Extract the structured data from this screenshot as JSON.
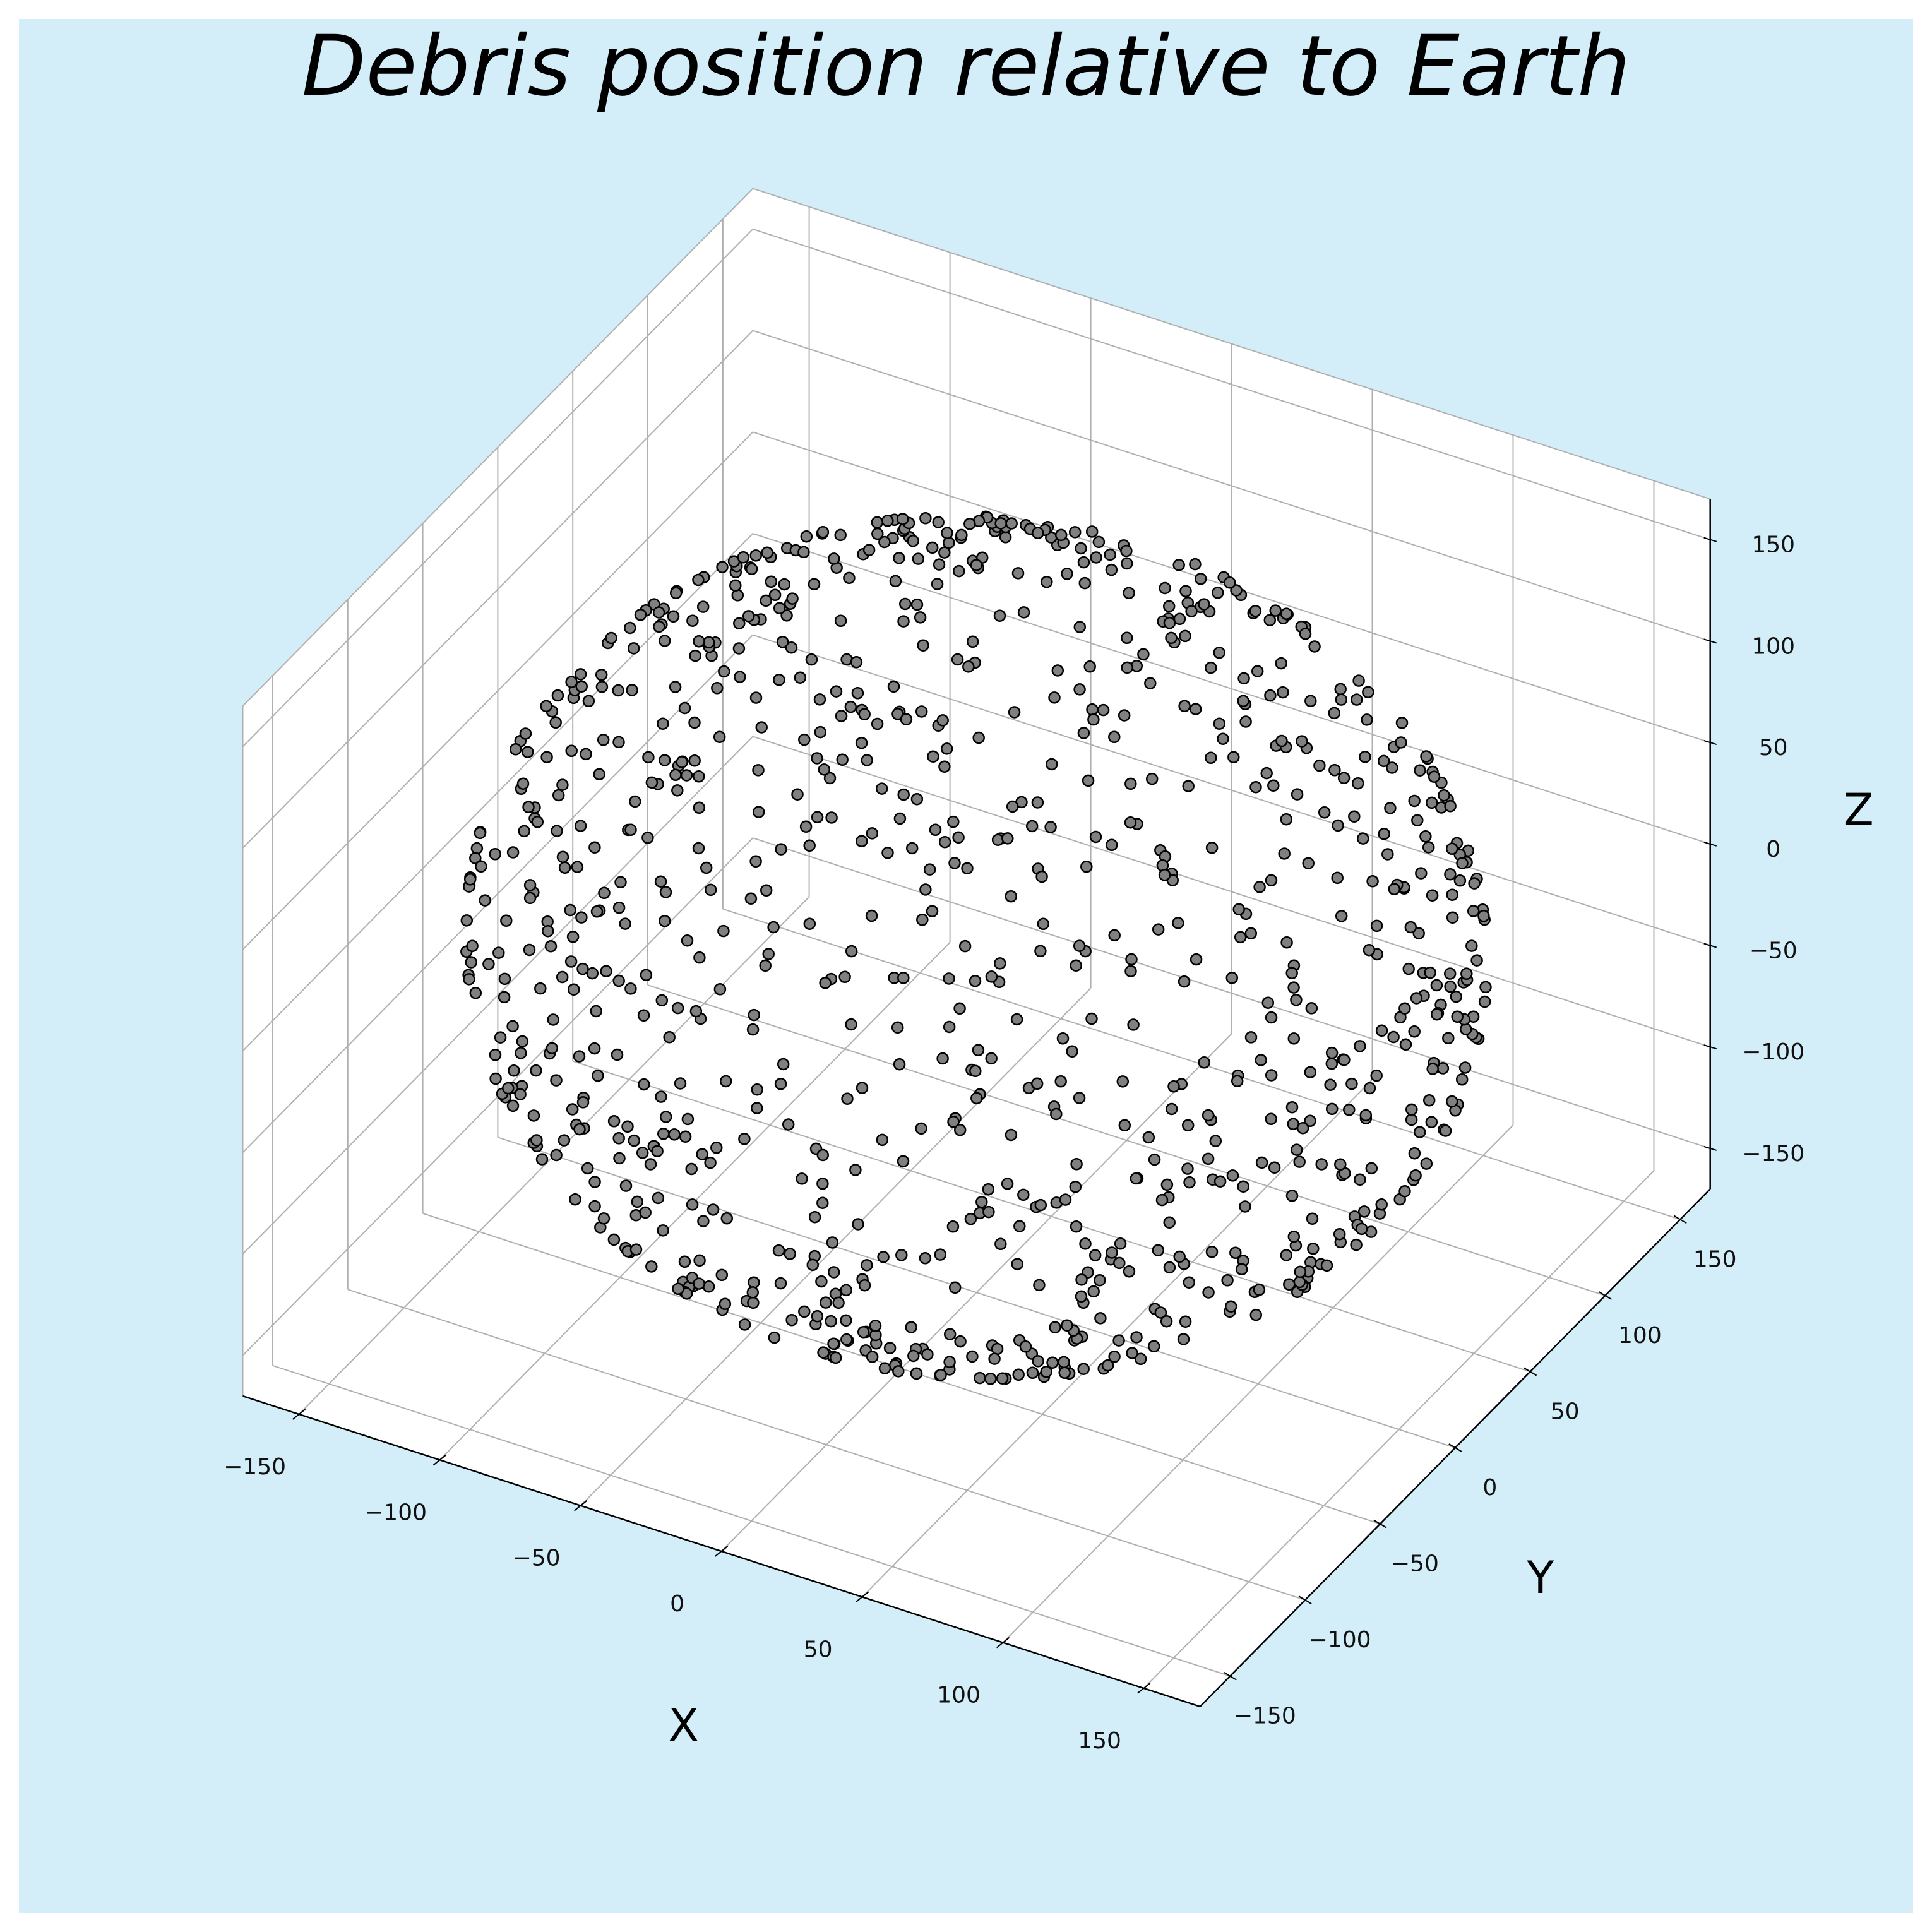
{
  "chart_data": {
    "type": "scatter",
    "projection": "3d",
    "title": "Debris position relative to Earth",
    "xlabel": "X",
    "ylabel": "Y",
    "zlabel": "Z",
    "xlim": [
      -170,
      170
    ],
    "ylim": [
      -170,
      170
    ],
    "zlim": [
      -170,
      170
    ],
    "x_ticks": [
      -150,
      -100,
      -50,
      0,
      50,
      100,
      150
    ],
    "y_ticks": [
      -150,
      -100,
      -50,
      0,
      50,
      100,
      150
    ],
    "z_ticks": [
      -150,
      -100,
      -50,
      0,
      50,
      100,
      150
    ],
    "x_tick_labels": [
      "−150",
      "−100",
      "−50",
      "0",
      "50",
      "100",
      "150"
    ],
    "y_tick_labels": [
      "−150",
      "−100",
      "−50",
      "0",
      "50",
      "100",
      "150"
    ],
    "z_tick_labels": [
      "−150",
      "−100",
      "−50",
      "0",
      "50",
      "100",
      "150"
    ],
    "grid": true,
    "series": [
      {
        "name": "debris",
        "description_shape": "points scattered on a sphere of radius ~160 centered at origin",
        "count": 1000,
        "radius": 160,
        "marker_color": "#808080",
        "edge_color": "#000000"
      }
    ]
  },
  "colors": {
    "background": "#d3eef8",
    "pane": "#ffffff",
    "grid": "#b0b0b0",
    "axis": "#000000"
  }
}
